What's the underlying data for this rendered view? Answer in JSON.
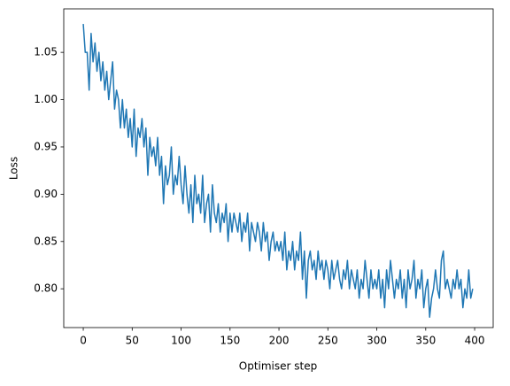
{
  "chart_data": {
    "type": "line",
    "x_label": "Optimiser step",
    "y_label": "Loss",
    "x": [
      0,
      2,
      4,
      6,
      8,
      10,
      12,
      14,
      16,
      18,
      20,
      22,
      24,
      26,
      28,
      30,
      32,
      34,
      36,
      38,
      40,
      42,
      44,
      46,
      48,
      50,
      52,
      54,
      56,
      58,
      60,
      62,
      64,
      66,
      68,
      70,
      72,
      74,
      76,
      78,
      80,
      82,
      84,
      86,
      88,
      90,
      92,
      94,
      96,
      98,
      100,
      102,
      104,
      106,
      108,
      110,
      112,
      114,
      116,
      118,
      120,
      122,
      124,
      126,
      128,
      130,
      132,
      134,
      136,
      138,
      140,
      142,
      144,
      146,
      148,
      150,
      152,
      154,
      156,
      158,
      160,
      162,
      164,
      166,
      168,
      170,
      172,
      174,
      176,
      178,
      180,
      182,
      184,
      186,
      188,
      190,
      192,
      194,
      196,
      198,
      200,
      202,
      204,
      206,
      208,
      210,
      212,
      214,
      216,
      218,
      220,
      222,
      224,
      226,
      228,
      230,
      232,
      234,
      236,
      238,
      240,
      242,
      244,
      246,
      248,
      250,
      252,
      254,
      256,
      258,
      260,
      262,
      264,
      266,
      268,
      270,
      272,
      274,
      276,
      278,
      280,
      282,
      284,
      286,
      288,
      290,
      292,
      294,
      296,
      298,
      300,
      302,
      304,
      306,
      308,
      310,
      312,
      314,
      316,
      318,
      320,
      322,
      324,
      326,
      328,
      330,
      332,
      334,
      336,
      338,
      340,
      342,
      344,
      346,
      348,
      350,
      352,
      354,
      356,
      358,
      360,
      362,
      364,
      366,
      368,
      370,
      372,
      374,
      376,
      378,
      380,
      382,
      384,
      386,
      388,
      390,
      392,
      394,
      396,
      398
    ],
    "series": [
      {
        "color": "#1f77b4",
        "values": [
          1.08,
          1.05,
          1.05,
          1.01,
          1.07,
          1.04,
          1.06,
          1.03,
          1.05,
          1.02,
          1.04,
          1.01,
          1.03,
          1.0,
          1.02,
          1.04,
          0.99,
          1.01,
          1.0,
          0.97,
          1.0,
          0.97,
          0.99,
          0.96,
          0.98,
          0.95,
          0.99,
          0.94,
          0.97,
          0.96,
          0.98,
          0.95,
          0.97,
          0.92,
          0.96,
          0.94,
          0.95,
          0.93,
          0.96,
          0.92,
          0.94,
          0.89,
          0.93,
          0.91,
          0.92,
          0.95,
          0.9,
          0.92,
          0.91,
          0.94,
          0.91,
          0.89,
          0.93,
          0.9,
          0.88,
          0.91,
          0.87,
          0.92,
          0.89,
          0.9,
          0.88,
          0.92,
          0.87,
          0.89,
          0.9,
          0.86,
          0.91,
          0.88,
          0.87,
          0.89,
          0.86,
          0.88,
          0.87,
          0.89,
          0.85,
          0.88,
          0.86,
          0.88,
          0.87,
          0.86,
          0.88,
          0.85,
          0.87,
          0.86,
          0.88,
          0.84,
          0.87,
          0.86,
          0.85,
          0.87,
          0.86,
          0.84,
          0.87,
          0.85,
          0.86,
          0.83,
          0.85,
          0.86,
          0.84,
          0.85,
          0.84,
          0.85,
          0.83,
          0.86,
          0.82,
          0.84,
          0.83,
          0.85,
          0.82,
          0.84,
          0.83,
          0.86,
          0.81,
          0.84,
          0.79,
          0.83,
          0.84,
          0.82,
          0.83,
          0.81,
          0.84,
          0.82,
          0.83,
          0.81,
          0.83,
          0.82,
          0.8,
          0.83,
          0.81,
          0.82,
          0.83,
          0.81,
          0.8,
          0.82,
          0.81,
          0.83,
          0.8,
          0.82,
          0.81,
          0.8,
          0.82,
          0.79,
          0.81,
          0.8,
          0.83,
          0.81,
          0.79,
          0.82,
          0.8,
          0.81,
          0.8,
          0.82,
          0.79,
          0.81,
          0.78,
          0.82,
          0.8,
          0.83,
          0.81,
          0.79,
          0.81,
          0.8,
          0.82,
          0.79,
          0.81,
          0.78,
          0.82,
          0.8,
          0.81,
          0.83,
          0.79,
          0.81,
          0.8,
          0.82,
          0.78,
          0.8,
          0.81,
          0.77,
          0.79,
          0.8,
          0.82,
          0.8,
          0.79,
          0.83,
          0.84,
          0.8,
          0.81,
          0.8,
          0.79,
          0.81,
          0.8,
          0.82,
          0.8,
          0.81,
          0.78,
          0.8,
          0.79,
          0.82,
          0.79,
          0.8
        ]
      }
    ],
    "xlim": [
      -19.95,
      418.95
    ],
    "xticks": [
      0,
      50,
      100,
      150,
      200,
      250,
      300,
      350,
      400
    ],
    "ylim": [
      0.759,
      1.096
    ],
    "yticks": [
      {
        "value": 0.8,
        "label": "0.80"
      },
      {
        "value": 0.85,
        "label": "0.85"
      },
      {
        "value": 0.9,
        "label": "0.90"
      },
      {
        "value": 0.95,
        "label": "0.95"
      },
      {
        "value": 1.0,
        "label": "1.00"
      },
      {
        "value": 1.05,
        "label": "1.05"
      }
    ],
    "grid": false
  }
}
